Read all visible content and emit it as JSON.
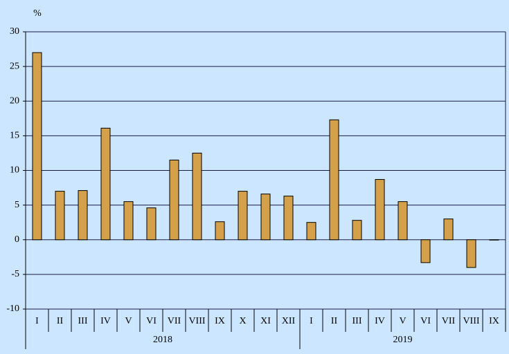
{
  "chart_data": {
    "type": "bar",
    "y_label": "%",
    "groups": [
      {
        "name": "2018",
        "categories": [
          "I",
          "II",
          "III",
          "IV",
          "V",
          "VI",
          "VII",
          "VIII",
          "IX",
          "X",
          "XI",
          "XII"
        ]
      },
      {
        "name": "2019",
        "categories": [
          "I",
          "II",
          "III",
          "IV",
          "V",
          "VI",
          "VII",
          "VIII",
          "IX"
        ]
      }
    ],
    "values": [
      27,
      7,
      7.1,
      16.1,
      5.5,
      4.6,
      11.5,
      12.5,
      2.6,
      7,
      6.6,
      6.3,
      2.5,
      17.3,
      2.8,
      8.7,
      5.5,
      -3.3,
      3,
      -4,
      0
    ],
    "color": "#d4a04a",
    "ylim": [
      -10,
      30
    ],
    "yticks": [
      -10,
      -5,
      0,
      5,
      10,
      15,
      20,
      25,
      30
    ],
    "grid": true
  }
}
